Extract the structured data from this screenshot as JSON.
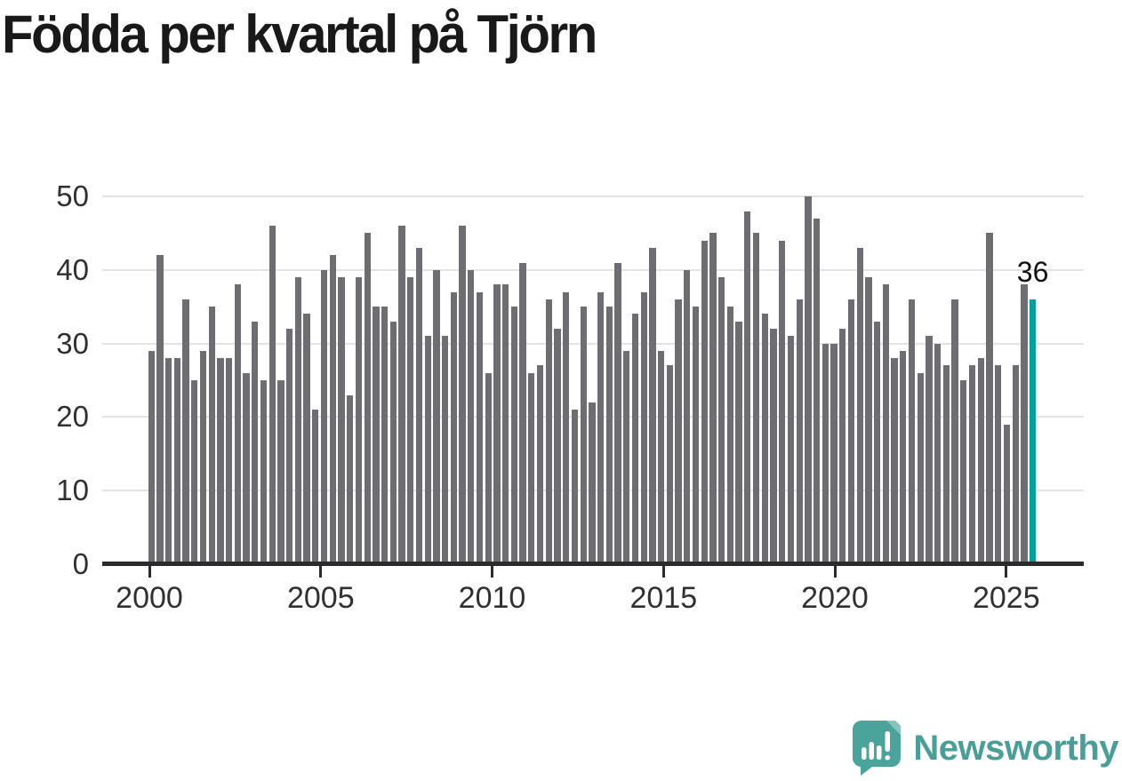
{
  "title": "Födda per kvartal på Tjörn",
  "annotation": {
    "label": "36"
  },
  "branding": {
    "name": "Newsworthy",
    "icon": "newsworthy-logo-icon",
    "color": "#4aa49c"
  },
  "colors": {
    "bar": "#6d6d72",
    "highlight": "#00a29b",
    "gridline": "#e3e3e3",
    "axis_line": "#2b2b2b",
    "tick_label": "#303030",
    "title": "#191919",
    "annotation": "#111111",
    "brand_teal": "#4a9e98"
  },
  "chart_data": {
    "type": "bar",
    "title": "Födda per kvartal på Tjörn",
    "xlabel": "",
    "ylabel": "",
    "start_period": "2000Q1",
    "end_period": "2025Q3",
    "frequency": "quarterly",
    "x_tick_labels": [
      "2000",
      "2005",
      "2010",
      "2015",
      "2020",
      "2025"
    ],
    "y_tick_labels": [
      "0",
      "10",
      "20",
      "30",
      "40",
      "50"
    ],
    "ylim": [
      0,
      50
    ],
    "grid": "horizontal",
    "legend": "none",
    "highlight_last_bar": true,
    "last_bar_label": "36",
    "values": [
      29,
      42,
      28,
      28,
      36,
      25,
      29,
      35,
      28,
      28,
      38,
      26,
      33,
      25,
      46,
      25,
      32,
      39,
      34,
      21,
      40,
      42,
      39,
      23,
      39,
      45,
      35,
      35,
      33,
      46,
      39,
      43,
      31,
      40,
      31,
      37,
      46,
      40,
      37,
      26,
      38,
      38,
      35,
      41,
      26,
      27,
      36,
      32,
      37,
      21,
      35,
      22,
      37,
      35,
      41,
      29,
      34,
      37,
      43,
      29,
      27,
      36,
      40,
      35,
      44,
      45,
      39,
      35,
      33,
      48,
      45,
      34,
      32,
      44,
      31,
      36,
      50,
      47,
      30,
      30,
      32,
      36,
      43,
      39,
      33,
      38,
      28,
      29,
      36,
      26,
      31,
      30,
      27,
      36,
      25,
      27,
      28,
      45,
      27,
      19,
      27,
      38,
      36
    ]
  }
}
